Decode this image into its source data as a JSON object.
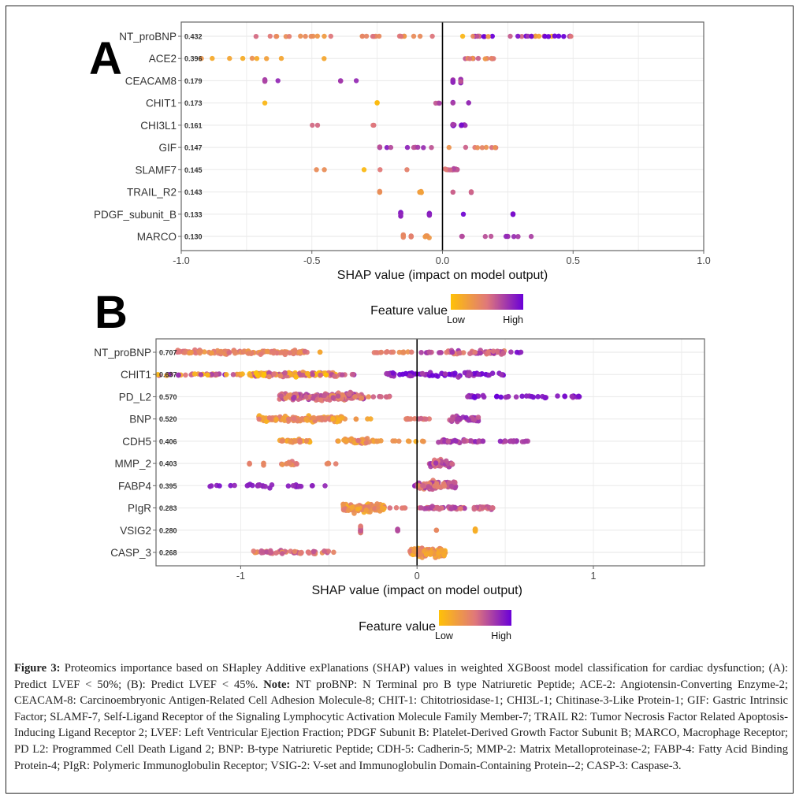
{
  "caption": {
    "label": "Figure 3:",
    "text1": " Proteomics importance based on SHapley Additive exPlanations (SHAP) values in weighted XGBoost model classification for cardiac dysfunction; (A): Predict LVEF < 50%; (B): Predict LVEF < 45%. ",
    "note_label": "Note:",
    "text2": " NT proBNP: N Terminal pro B type Natriuretic Peptide; ACE-2: Angiotensin-Converting Enzyme-2; CEACAM-8: Carcinoembryonic Antigen-Related Cell Adhesion Molecule-8; CHIT-1: Chitotriosidase-1; CHI3L-1; Chitinase-3-Like Protein-1; GIF: Gastric Intrinsic Factor; SLAMF-7, Self-Ligand Receptor of the Signaling Lymphocytic Activation Molecule Family Member-7; TRAIL R2: Tumor Necrosis Factor Related Apoptosis-Inducing Ligand Receptor 2; LVEF: Left Ventricular Ejection Fraction; PDGF Subunit B: Platelet-Derived Growth Factor Subunit B; MARCO, Macrophage Receptor; PD L2: Programmed Cell Death Ligand 2; BNP: B-type Natriuretic Peptide; CDH-5: Cadherin-5; MMP-2: Matrix Metalloproteinase-2; FABP-4: Fatty Acid Binding Protein-4; PIgR: Polymeric Immunoglobulin Receptor; VSIG-2: V-set and Immunoglobulin Domain-Containing Protein--2; CASP-3: Caspase-3."
  },
  "colors": {
    "low": "#FFC107",
    "mid": "#E0787A",
    "high": "#6A00D8",
    "zero_line": "#000000",
    "grid": "#EBEBEB",
    "axis": "#666666"
  },
  "chart_data": [
    {
      "panel": "A",
      "type": "scatter",
      "subtype": "shap-beeswarm",
      "xlabel": "SHAP value (impact on model output)",
      "xlim": [
        -1.0,
        1.0
      ],
      "xticks": [
        -1.0,
        -0.5,
        0.0,
        0.5,
        1.0
      ],
      "xtick_labels": [
        "-1.0",
        "-0.5",
        "0.0",
        "0.5",
        "1.0"
      ],
      "grid": true,
      "legend": {
        "title": "Feature value",
        "low": "Low",
        "high": "High",
        "placement": "bottom-center"
      },
      "features": [
        {
          "name": "NT_proBNP",
          "mean_abs_shap": "0.432",
          "clusters": [
            [
              -0.72,
              -0.02,
              0.4,
              28,
              0.15,
              0.02
            ],
            [
              0.02,
              0.5,
              0.7,
              30,
              0.7,
              0.02
            ]
          ]
        },
        {
          "name": "ACE2",
          "mean_abs_shap": "0.396",
          "clusters": [
            [
              -0.93,
              -0.4,
              0.25,
              9,
              0.12,
              0.02
            ],
            [
              0.08,
              0.2,
              0.45,
              12,
              0.2,
              0.04
            ]
          ]
        },
        {
          "name": "CEACAM8",
          "mean_abs_shap": "0.179",
          "clusters": [
            [
              -0.68,
              -0.68,
              0.82,
              4,
              0.1,
              0.1
            ],
            [
              -0.63,
              -0.63,
              0.85,
              1,
              0.1,
              0
            ],
            [
              -0.39,
              -0.39,
              0.82,
              3,
              0.1,
              0.06
            ],
            [
              -0.33,
              -0.33,
              0.85,
              1,
              0.1,
              0
            ],
            [
              0.04,
              0.04,
              0.75,
              10,
              0.15,
              0.24
            ],
            [
              0.07,
              0.07,
              0.75,
              12,
              0.2,
              0.3
            ]
          ]
        },
        {
          "name": "CHIT1",
          "mean_abs_shap": "0.173",
          "clusters": [
            [
              -0.68,
              -0.68,
              0.05,
              1,
              0.02,
              0
            ],
            [
              -0.25,
              -0.25,
              0.05,
              2,
              0.02,
              0.03
            ],
            [
              -0.03,
              -0.01,
              0.65,
              3,
              0.1,
              0.03
            ],
            [
              0.04,
              0.04,
              0.8,
              3,
              0.1,
              0.05
            ],
            [
              0.1,
              0.1,
              0.8,
              2,
              0.1,
              0.03
            ]
          ]
        },
        {
          "name": "CHI3L1",
          "mean_abs_shap": "0.161",
          "clusters": [
            [
              -0.54,
              -0.47,
              0.55,
              2,
              0.05,
              0
            ],
            [
              -0.27,
              -0.2,
              0.55,
              2,
              0.05,
              0
            ],
            [
              0.03,
              0.05,
              0.85,
              6,
              0.12,
              0.06
            ],
            [
              0.07,
              0.09,
              0.85,
              6,
              0.12,
              0.06
            ]
          ]
        },
        {
          "name": "GIF",
          "mean_abs_shap": "0.147",
          "clusters": [
            [
              -0.24,
              -0.24,
              0.7,
              3,
              0.1,
              0.05
            ],
            [
              -0.22,
              -0.03,
              0.75,
              8,
              0.15,
              0.02
            ],
            [
              0.01,
              0.21,
              0.45,
              9,
              0.15,
              0.02
            ]
          ]
        },
        {
          "name": "SLAMF7",
          "mean_abs_shap": "0.145",
          "clusters": [
            [
              -0.49,
              -0.42,
              0.35,
              2,
              0.05,
              0
            ],
            [
              -0.3,
              -0.3,
              0.05,
              1,
              0.02,
              0
            ],
            [
              -0.25,
              -0.07,
              0.45,
              2,
              0.05,
              0
            ],
            [
              0.01,
              0.06,
              0.6,
              14,
              0.15,
              0.08
            ]
          ]
        },
        {
          "name": "TRAIL_R2",
          "mean_abs_shap": "0.143",
          "clusters": [
            [
              -0.24,
              -0.24,
              0.35,
              3,
              0.05,
              0.06
            ],
            [
              -0.09,
              -0.08,
              0.25,
              5,
              0.05,
              0.06
            ],
            [
              0.04,
              0.04,
              0.6,
              2,
              0.05,
              0.03
            ],
            [
              0.11,
              0.11,
              0.6,
              3,
              0.05,
              0.06
            ]
          ]
        },
        {
          "name": "PDGF_subunit_B",
          "mean_abs_shap": "0.133",
          "clusters": [
            [
              -0.16,
              -0.16,
              0.88,
              8,
              0.05,
              0.22
            ],
            [
              -0.05,
              -0.05,
              0.88,
              7,
              0.05,
              0.18
            ],
            [
              0.08,
              0.08,
              0.95,
              1,
              0.03,
              0
            ],
            [
              0.27,
              0.27,
              0.92,
              3,
              0.03,
              0.05
            ]
          ]
        },
        {
          "name": "MARCO",
          "mean_abs_shap": "0.130",
          "clusters": [
            [
              -0.15,
              -0.15,
              0.4,
              5,
              0.05,
              0.18
            ],
            [
              -0.12,
              -0.12,
              0.4,
              5,
              0.05,
              0.14
            ],
            [
              -0.07,
              -0.05,
              0.3,
              6,
              0.05,
              0.12
            ],
            [
              0.04,
              0.34,
              0.75,
              10,
              0.1,
              0.02
            ]
          ]
        }
      ]
    },
    {
      "panel": "B",
      "type": "scatter",
      "subtype": "shap-beeswarm",
      "xlabel": "SHAP value (impact on model output)",
      "xlim": [
        -1.48,
        1.63
      ],
      "xticks": [
        -1,
        0,
        1
      ],
      "xtick_labels": [
        "-1",
        "0",
        "1"
      ],
      "grid": true,
      "legend": {
        "title": "Feature value",
        "low": "Low",
        "high": "High",
        "placement": "bottom-center"
      },
      "features": [
        {
          "name": "NT_proBNP",
          "mean_abs_shap": "0.707",
          "clusters": [
            [
              -1.36,
              -0.62,
              0.4,
              120,
              0.15,
              0.16
            ],
            [
              -0.55,
              -0.55,
              0.2,
              2,
              0.05,
              0.02
            ],
            [
              -0.25,
              -0.02,
              0.4,
              15,
              0.1,
              0.06
            ],
            [
              0.02,
              0.5,
              0.6,
              60,
              0.2,
              0.16
            ],
            [
              0.52,
              0.62,
              0.85,
              4,
              0.1,
              0.05
            ]
          ]
        },
        {
          "name": "CHIT1",
          "mean_abs_shap": "0.637",
          "clusters": [
            [
              -1.48,
              -0.98,
              0.5,
              40,
              0.45,
              0.08
            ],
            [
              -0.95,
              -0.45,
              0.3,
              110,
              0.4,
              0.18
            ],
            [
              -0.45,
              -0.35,
              0.7,
              6,
              0.2,
              0.04
            ],
            [
              -0.18,
              0.5,
              0.88,
              70,
              0.15,
              0.16
            ]
          ]
        },
        {
          "name": "PD_L2",
          "mean_abs_shap": "0.570",
          "clusters": [
            [
              -0.78,
              -0.3,
              0.55,
              150,
              0.25,
              0.26
            ],
            [
              -0.55,
              -0.35,
              0.5,
              60,
              0.2,
              0.32
            ],
            [
              -0.3,
              -0.15,
              0.45,
              8,
              0.2,
              0.04
            ],
            [
              0.27,
              0.93,
              0.88,
              45,
              0.12,
              0.1
            ]
          ]
        },
        {
          "name": "BNP",
          "mean_abs_shap": "0.520",
          "clusters": [
            [
              -0.9,
              -0.4,
              0.3,
              110,
              0.2,
              0.24
            ],
            [
              -0.4,
              -0.25,
              0.2,
              4,
              0.1,
              0.02
            ],
            [
              -0.08,
              0.1,
              0.5,
              14,
              0.1,
              0.04
            ],
            [
              0.18,
              0.35,
              0.72,
              40,
              0.15,
              0.22
            ]
          ]
        },
        {
          "name": "CDH5",
          "mean_abs_shap": "0.406",
          "clusters": [
            [
              -0.78,
              -0.6,
              0.3,
              30,
              0.2,
              0.12
            ],
            [
              -0.45,
              -0.25,
              0.35,
              40,
              0.2,
              0.22
            ],
            [
              -0.25,
              0.05,
              0.25,
              14,
              0.15,
              0.04
            ],
            [
              0.12,
              0.38,
              0.72,
              40,
              0.15,
              0.14
            ],
            [
              0.45,
              0.67,
              0.75,
              18,
              0.12,
              0.08
            ]
          ]
        },
        {
          "name": "MMP_2",
          "mean_abs_shap": "0.403",
          "clusters": [
            [
              -0.95,
              -0.95,
              0.4,
              3,
              0.05,
              0.08
            ],
            [
              -0.87,
              -0.87,
              0.4,
              3,
              0.05,
              0.1
            ],
            [
              -0.78,
              -0.68,
              0.4,
              14,
              0.15,
              0.14
            ],
            [
              -0.52,
              -0.45,
              0.4,
              5,
              0.05,
              0.1
            ],
            [
              0.07,
              0.2,
              0.65,
              50,
              0.15,
              0.3
            ]
          ]
        },
        {
          "name": "FABP4",
          "mean_abs_shap": "0.395",
          "clusters": [
            [
              -1.18,
              -1.02,
              0.88,
              6,
              0.05,
              0.08
            ],
            [
              -0.97,
              -0.82,
              0.85,
              14,
              0.05,
              0.14
            ],
            [
              -0.75,
              -0.65,
              0.85,
              8,
              0.05,
              0.14
            ],
            [
              -0.6,
              -0.52,
              0.85,
              3,
              0.05,
              0.03
            ],
            [
              -0.02,
              0.0,
              0.8,
              3,
              0.05,
              0.02
            ],
            [
              0.0,
              0.22,
              0.55,
              100,
              0.2,
              0.3
            ]
          ]
        },
        {
          "name": "PIgR",
          "mean_abs_shap": "0.283",
          "clusters": [
            [
              -0.42,
              -0.18,
              0.3,
              130,
              0.2,
              0.34
            ],
            [
              -0.16,
              0.02,
              0.5,
              6,
              0.05,
              0.02
            ],
            [
              0.02,
              0.43,
              0.6,
              60,
              0.15,
              0.12
            ]
          ]
        },
        {
          "name": "VSIG2",
          "mean_abs_shap": "0.280",
          "clusters": [
            [
              -0.32,
              -0.32,
              0.55,
              14,
              0.2,
              0.55
            ],
            [
              -0.11,
              -0.11,
              0.7,
              4,
              0.05,
              0.1
            ],
            [
              0.11,
              0.11,
              0.4,
              2,
              0.03,
              0
            ],
            [
              0.33,
              0.33,
              0.15,
              6,
              0.03,
              0.12
            ]
          ]
        },
        {
          "name": "CASP_3",
          "mean_abs_shap": "0.268",
          "clusters": [
            [
              -0.94,
              -0.46,
              0.5,
              50,
              0.2,
              0.14
            ],
            [
              -0.04,
              0.16,
              0.3,
              140,
              0.2,
              0.36
            ]
          ]
        }
      ]
    }
  ]
}
